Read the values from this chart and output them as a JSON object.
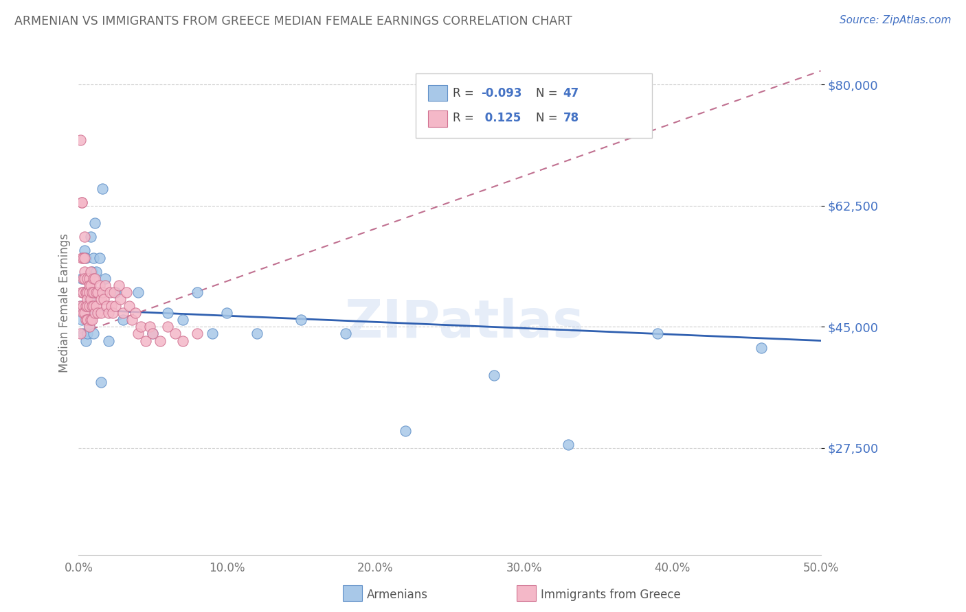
{
  "title": "ARMENIAN VS IMMIGRANTS FROM GREECE MEDIAN FEMALE EARNINGS CORRELATION CHART",
  "source": "Source: ZipAtlas.com",
  "ylabel": "Median Female Earnings",
  "yticks": [
    27500,
    45000,
    62500,
    80000
  ],
  "ytick_labels": [
    "$27,500",
    "$45,000",
    "$62,500",
    "$80,000"
  ],
  "xmin": 0.0,
  "xmax": 0.5,
  "ymin": 12000,
  "ymax": 85000,
  "color_armenian_fill": "#a8c8e8",
  "color_armenian_edge": "#6090c8",
  "color_greece_fill": "#f4b8c8",
  "color_greece_edge": "#d07090",
  "color_line_armenian": "#3060b0",
  "color_line_greece": "#c07090",
  "color_labels_blue": "#4472c4",
  "color_title": "#666666",
  "watermark": "ZIPatlas",
  "armenian_scatter_x": [
    0.001,
    0.002,
    0.002,
    0.003,
    0.003,
    0.004,
    0.004,
    0.005,
    0.005,
    0.005,
    0.006,
    0.006,
    0.006,
    0.007,
    0.007,
    0.007,
    0.008,
    0.008,
    0.009,
    0.009,
    0.01,
    0.01,
    0.011,
    0.012,
    0.013,
    0.014,
    0.015,
    0.016,
    0.018,
    0.02,
    0.025,
    0.03,
    0.04,
    0.05,
    0.06,
    0.07,
    0.08,
    0.09,
    0.1,
    0.12,
    0.15,
    0.18,
    0.22,
    0.28,
    0.33,
    0.39,
    0.46
  ],
  "armenian_scatter_y": [
    48000,
    46000,
    52000,
    50000,
    44000,
    48000,
    56000,
    55000,
    47000,
    43000,
    50000,
    48000,
    44000,
    52000,
    49000,
    45000,
    58000,
    46000,
    53000,
    47000,
    55000,
    44000,
    60000,
    53000,
    50000,
    55000,
    37000,
    65000,
    52000,
    43000,
    50000,
    46000,
    50000,
    44000,
    47000,
    46000,
    50000,
    44000,
    47000,
    44000,
    46000,
    44000,
    30000,
    38000,
    28000,
    44000,
    42000
  ],
  "greece_scatter_x": [
    0.001,
    0.001,
    0.001,
    0.002,
    0.002,
    0.002,
    0.002,
    0.003,
    0.003,
    0.003,
    0.003,
    0.003,
    0.004,
    0.004,
    0.004,
    0.004,
    0.004,
    0.005,
    0.005,
    0.005,
    0.005,
    0.006,
    0.006,
    0.006,
    0.006,
    0.006,
    0.006,
    0.007,
    0.007,
    0.007,
    0.007,
    0.007,
    0.008,
    0.008,
    0.008,
    0.008,
    0.009,
    0.009,
    0.009,
    0.01,
    0.01,
    0.01,
    0.011,
    0.011,
    0.012,
    0.012,
    0.013,
    0.013,
    0.014,
    0.015,
    0.015,
    0.016,
    0.017,
    0.018,
    0.019,
    0.02,
    0.021,
    0.022,
    0.023,
    0.024,
    0.025,
    0.027,
    0.028,
    0.03,
    0.032,
    0.034,
    0.036,
    0.038,
    0.04,
    0.042,
    0.045,
    0.048,
    0.05,
    0.055,
    0.06,
    0.065,
    0.07,
    0.08
  ],
  "greece_scatter_y": [
    72000,
    48000,
    44000,
    63000,
    63000,
    55000,
    50000,
    55000,
    52000,
    50000,
    48000,
    47000,
    58000,
    55000,
    53000,
    52000,
    47000,
    50000,
    50000,
    48000,
    46000,
    52000,
    50000,
    49000,
    48000,
    46000,
    46000,
    52000,
    51000,
    50000,
    48000,
    45000,
    53000,
    51000,
    49000,
    46000,
    50000,
    48000,
    46000,
    52000,
    50000,
    48000,
    52000,
    47000,
    50000,
    48000,
    50000,
    47000,
    51000,
    49000,
    47000,
    50000,
    49000,
    51000,
    48000,
    47000,
    50000,
    48000,
    47000,
    50000,
    48000,
    51000,
    49000,
    47000,
    50000,
    48000,
    46000,
    47000,
    44000,
    45000,
    43000,
    45000,
    44000,
    43000,
    45000,
    44000,
    43000,
    44000
  ],
  "arm_trend_x0": 0.0,
  "arm_trend_x1": 0.5,
  "arm_trend_y0": 47500,
  "arm_trend_y1": 43000,
  "gre_trend_x0": 0.0,
  "gre_trend_x1": 0.5,
  "gre_trend_y0": 44000,
  "gre_trend_y1": 82000
}
